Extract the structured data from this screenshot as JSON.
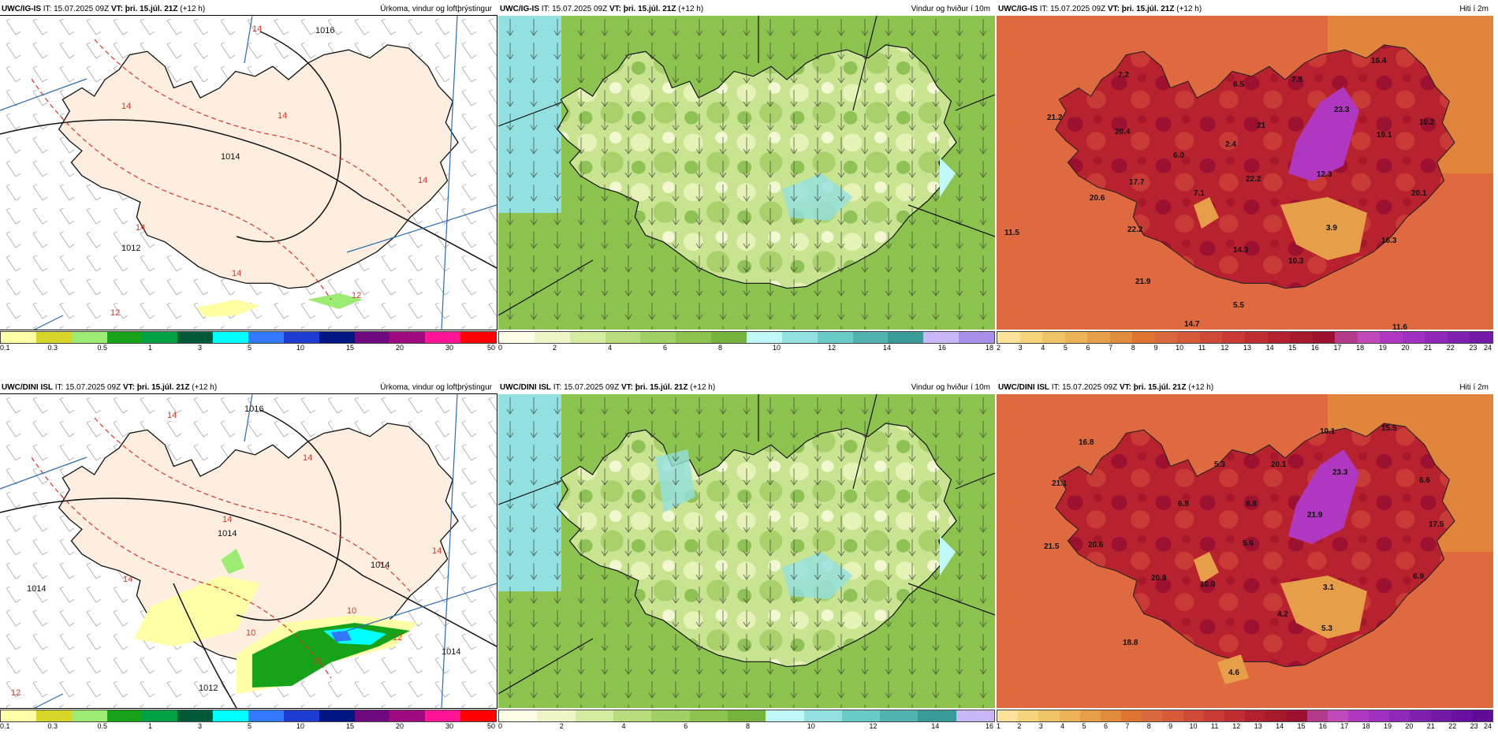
{
  "colors": {
    "land_pressure": "#fdeee0",
    "sea_pressure": "#ffffff",
    "isobar": "#111111",
    "isotherm": "#d9332b",
    "wind_bg": "#b7d97a",
    "temp_bg": "#d9683e"
  },
  "panels": {
    "p1": {
      "model": "UWC/IG-IS",
      "it_label": "IT:",
      "it": "15.07.2025 09Z",
      "vt_label": "VT:",
      "vt": "þri. 15.júl. 21Z",
      "lead": "(+12 h)",
      "title": "Úrkoma, vindur og loftþrýstingur",
      "isobars": [
        "1016",
        "1014",
        "1012"
      ],
      "isotherms": [
        "14",
        "14",
        "14",
        "14",
        "14",
        "14",
        "12",
        "12",
        "12",
        "14"
      ]
    },
    "p2": {
      "model": "UWC/IG-IS",
      "it_label": "IT:",
      "it": "15.07.2025 09Z",
      "vt_label": "VT:",
      "vt": "þri. 15.júl. 21Z",
      "lead": "(+12 h)",
      "title": "Vindur og hviður í 10m"
    },
    "p3": {
      "model": "UWC/IG-IS",
      "it_label": "IT:",
      "it": "15.07.2025 09Z",
      "vt_label": "VT:",
      "vt": "þri. 15.júl. 21Z",
      "lead": "(+12 h)",
      "title": "Hiti í 2m",
      "labels": [
        "7.2",
        "6.5",
        "7.8",
        "16.4",
        "23.3",
        "10.2",
        "19.1",
        "21.2",
        "20.4",
        "21",
        "2.4",
        "6.0",
        "17.7",
        "22.2",
        "12.3",
        "20.1",
        "20.6",
        "7.1",
        "3.9",
        "11.5",
        "22.2",
        "14.3",
        "10.3",
        "16.3",
        "21.9",
        "5.5",
        "14.7",
        "11.6"
      ]
    },
    "p4": {
      "model": "UWC/DINI ISL",
      "it_label": "IT:",
      "it": "15.07.2025 09Z",
      "vt_label": "VT:",
      "vt": "þri. 15.júl. 21Z",
      "lead": "(+12 h)",
      "title": "Úrkoma, vindur og loftþrýstingur",
      "isobars": [
        "1016",
        "1014",
        "1014",
        "1014",
        "1012",
        "1014"
      ],
      "isotherms": [
        "14",
        "14",
        "14",
        "14",
        "14",
        "10",
        "10",
        "10",
        "12",
        "12"
      ]
    },
    "p5": {
      "model": "UWC/DINI ISL",
      "it_label": "IT:",
      "it": "15.07.2025 09Z",
      "vt_label": "VT:",
      "vt": "þri. 15.júl. 21Z",
      "lead": "(+12 h)",
      "title": "Vindur og hviður í 10m"
    },
    "p6": {
      "model": "UWC/DINI ISL",
      "it_label": "IT:",
      "it": "15.07.2025 09Z",
      "vt_label": "VT:",
      "vt": "þri. 15.júl. 21Z",
      "lead": "(+12 h)",
      "title": "Hiti í 2m",
      "labels": [
        "16.8",
        "10.1",
        "15.5",
        "5.3",
        "20.1",
        "23.3",
        "6.6",
        "21.1",
        "6.8",
        "8.8",
        "21.9",
        "17.5",
        "21.5",
        "20.6",
        "5.6",
        "20.9",
        "10.0",
        "3.1",
        "6.9",
        "4.2",
        "5.3",
        "18.8",
        "4.6"
      ]
    }
  },
  "scales": {
    "precip": {
      "colors": [
        "#ffffa8",
        "#d6d62a",
        "#9cec74",
        "#16a31a",
        "#00a045",
        "#005a38",
        "#00ffff",
        "#3278ff",
        "#1e3cd2",
        "#001680",
        "#6e0a80",
        "#a00a80",
        "#ff1493",
        "#ff0000"
      ],
      "ticks": [
        "0.1",
        "0.3",
        "0.5",
        "1",
        "3",
        "5",
        "10",
        "15",
        "20",
        "30",
        "50"
      ]
    },
    "wind_top": {
      "colors": [
        "#fefee7",
        "#eef6c8",
        "#d4eca0",
        "#b9dc7d",
        "#a0d064",
        "#8cc24e",
        "#76b23e",
        "#bff8f6",
        "#92e0e0",
        "#6acac8",
        "#52b2b0",
        "#3a9a98",
        "#c8b8f8",
        "#a88fe8"
      ],
      "ticks": [
        "0",
        "2",
        "4",
        "6",
        "8",
        "10",
        "12",
        "14",
        "16",
        "18"
      ]
    },
    "wind_bottom": {
      "colors": [
        "#fefee7",
        "#eef6c8",
        "#d4eca0",
        "#b9dc7d",
        "#a0d064",
        "#8cc24e",
        "#76b23e",
        "#bff8f6",
        "#92e0e0",
        "#6acac8",
        "#52b2b0",
        "#3a9a98",
        "#c8b8f8"
      ],
      "ticks": [
        "0",
        "2",
        "4",
        "6",
        "8",
        "10",
        "12",
        "14",
        "16"
      ]
    },
    "temp_top": {
      "colors": [
        "#fbe39a",
        "#f6d47c",
        "#f0c466",
        "#ebb356",
        "#e69f48",
        "#e18b3c",
        "#dd7430",
        "#d9683e",
        "#d75a3a",
        "#d04a38",
        "#c83a35",
        "#bf2c31",
        "#b3202e",
        "#a6182c",
        "#9c1030",
        "#b43a8c",
        "#c04ab8",
        "#b038c0",
        "#a030c0",
        "#9028b8",
        "#8020b0",
        "#7418a8"
      ],
      "ticks": [
        "2",
        "3",
        "4",
        "5",
        "6",
        "7",
        "8",
        "9",
        "10",
        "11",
        "12",
        "13",
        "14",
        "15",
        "16",
        "17",
        "18",
        "19",
        "20",
        "21",
        "22",
        "23",
        "24"
      ]
    },
    "temp_bottom": {
      "colors": [
        "#fbe39a",
        "#f6d47c",
        "#f0c466",
        "#ebb356",
        "#e69f48",
        "#e18b3c",
        "#dd7430",
        "#d9683e",
        "#d75a3a",
        "#d04a38",
        "#c83a35",
        "#bf2c31",
        "#b3202e",
        "#a6182c",
        "#9c1030",
        "#b43a8c",
        "#c04ab8",
        "#b038c0",
        "#a030c0",
        "#9028b8",
        "#8020b0",
        "#7418a8",
        "#6a10a0",
        "#600a98"
      ],
      "ticks": [
        "1",
        "2",
        "3",
        "4",
        "5",
        "6",
        "7",
        "8",
        "9",
        "10",
        "11",
        "12",
        "13",
        "14",
        "15",
        "16",
        "17",
        "18",
        "19",
        "20",
        "21",
        "22",
        "23",
        "24"
      ]
    }
  }
}
